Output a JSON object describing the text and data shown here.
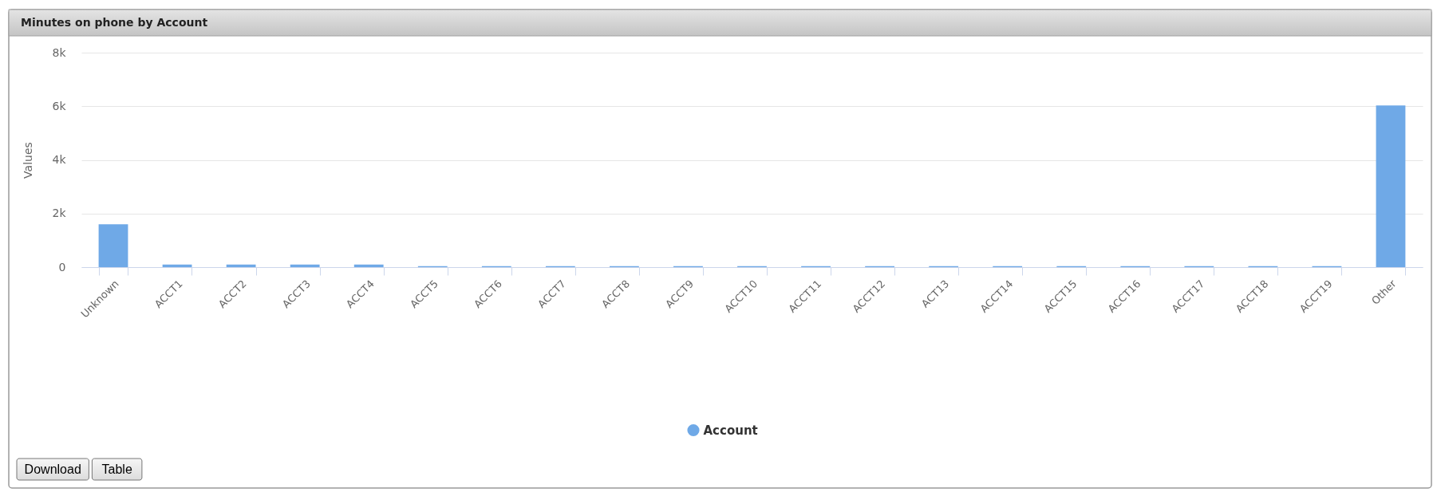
{
  "chart_data": {
    "type": "bar",
    "title": "Minutes on phone by Account",
    "ylabel": "Values",
    "categories": [
      "Unknown",
      "ACCT1",
      "ACCT2",
      "ACCT3",
      "ACCT4",
      "ACCT5",
      "ACCT6",
      "ACCT7",
      "ACCT8",
      "ACCT9",
      "ACCT10",
      "ACCT11",
      "ACCT12",
      "ACT13",
      "ACCT14",
      "ACCT15",
      "ACCT16",
      "ACCT17",
      "ACCT18",
      "ACCT19",
      "Other"
    ],
    "series": [
      {
        "name": "Account",
        "color": "#6fa9e7",
        "values": [
          1600,
          100,
          100,
          100,
          100,
          40,
          40,
          40,
          40,
          40,
          40,
          40,
          40,
          40,
          40,
          40,
          40,
          40,
          40,
          40,
          6030
        ]
      }
    ],
    "ylim": [
      0,
      8000
    ],
    "yticks": [
      0,
      {
        "value": 2000,
        "label": "2k"
      },
      {
        "value": 4000,
        "label": "4k"
      },
      {
        "value": 6000,
        "label": "6k"
      },
      {
        "value": 8000,
        "label": "8k"
      }
    ],
    "grid": "y",
    "legend": "bottom",
    "annotations": [
      "Download",
      "Table"
    ]
  }
}
